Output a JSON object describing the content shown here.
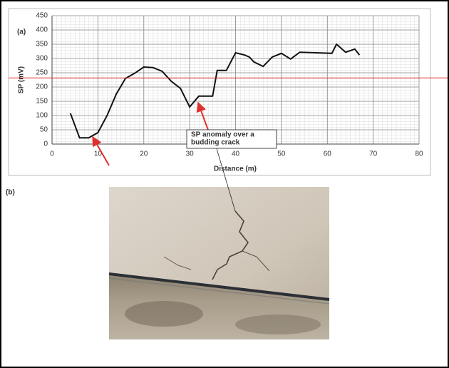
{
  "chart_data": {
    "type": "line",
    "panel_labels": [
      "(a)",
      "(b)"
    ],
    "xlabel": "Distance (m)",
    "ylabel": "SP (mV)",
    "annotation_lines": [
      "SP anomaly over a",
      "budding crack"
    ],
    "x": [
      4,
      6,
      8,
      10,
      12,
      14,
      16,
      18,
      20,
      22,
      24,
      26,
      28,
      30,
      32,
      35,
      36,
      38,
      40,
      42,
      43,
      44,
      46,
      48,
      50,
      52,
      54,
      61,
      62,
      64,
      66,
      67
    ],
    "series": [
      {
        "color": "#111111",
        "values": [
          108,
          22,
          22,
          40,
          100,
          175,
          230,
          248,
          270,
          268,
          255,
          220,
          195,
          130,
          168,
          168,
          258,
          258,
          320,
          312,
          305,
          288,
          272,
          305,
          318,
          298,
          322,
          318,
          350,
          322,
          333,
          312
        ]
      }
    ],
    "reference_line": {
      "value": 232,
      "color": "#e03030"
    },
    "xlim": [
      0,
      80
    ],
    "xticks": [
      0,
      10,
      20,
      30,
      40,
      50,
      60,
      70,
      80
    ],
    "ylim": [
      0,
      450
    ],
    "yticks": [
      0,
      50,
      100,
      150,
      200,
      250,
      300,
      350,
      400,
      450
    ],
    "grid": true
  }
}
